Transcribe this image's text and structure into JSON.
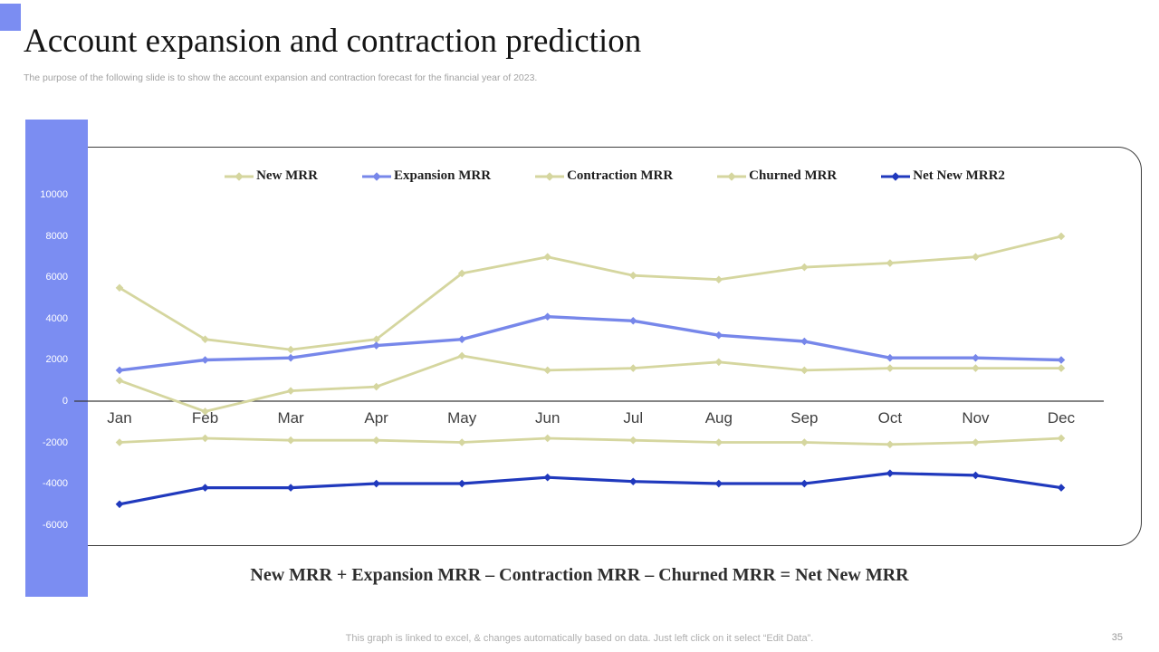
{
  "slide": {
    "title": "Account expansion and contraction prediction",
    "subtitle": "The purpose of the following slide is to show the account expansion and contraction forecast for the financial year of 2023.",
    "formula": "New MRR + Expansion MRR – Contraction MRR – Churned MRR = Net New MRR",
    "footer_note": "This graph is linked to excel, & changes automatically based on data. Just left click on it select “Edit Data”.",
    "page_number": "35"
  },
  "colors": {
    "accent_blue": "#7b8df2",
    "khaki_line": "#d5d69f",
    "light_blue_line": "#7787ea",
    "dark_blue_line": "#2039bd",
    "axis_line": "#3a3a3a"
  },
  "chart_data": {
    "type": "line",
    "title": "",
    "xlabel": "",
    "ylabel": "",
    "legend_position": "top",
    "grid": false,
    "ylim": [
      -6000,
      10000
    ],
    "y_ticks": [
      10000,
      8000,
      6000,
      4000,
      2000,
      0,
      -2000,
      -4000,
      -6000
    ],
    "categories": [
      "Jan",
      "Feb",
      "Mar",
      "Apr",
      "May",
      "Jun",
      "Jul",
      "Aug",
      "Sep",
      "Oct",
      "Nov",
      "Dec"
    ],
    "series": [
      {
        "name": "New MRR",
        "color": "#d5d69f",
        "width": 2.8,
        "values": [
          5500,
          3000,
          2500,
          3000,
          6200,
          7000,
          6100,
          5900,
          6500,
          6700,
          7000,
          8000
        ]
      },
      {
        "name": "Expansion MRR",
        "color": "#7787ea",
        "width": 3.4,
        "values": [
          1500,
          2000,
          2100,
          2700,
          3000,
          4100,
          3900,
          3200,
          2900,
          2100,
          2100,
          2000
        ]
      },
      {
        "name": "Contraction MRR",
        "color": "#d5d69f",
        "width": 2.8,
        "values": [
          1000,
          -500,
          500,
          700,
          2200,
          1500,
          1600,
          1900,
          1500,
          1600,
          1600,
          1600
        ]
      },
      {
        "name": "Churned MRR",
        "color": "#d5d69f",
        "width": 2.8,
        "values": [
          -2000,
          -1800,
          -1900,
          -1900,
          -2000,
          -1800,
          -1900,
          -2000,
          -2000,
          -2100,
          -2000,
          -1800
        ]
      },
      {
        "name": "Net New MRR2",
        "color": "#2039bd",
        "width": 3.2,
        "values": [
          -5000,
          -4200,
          -4200,
          -4000,
          -4000,
          -3700,
          -3900,
          -4000,
          -4000,
          -3500,
          -3600,
          -4200
        ]
      }
    ]
  }
}
